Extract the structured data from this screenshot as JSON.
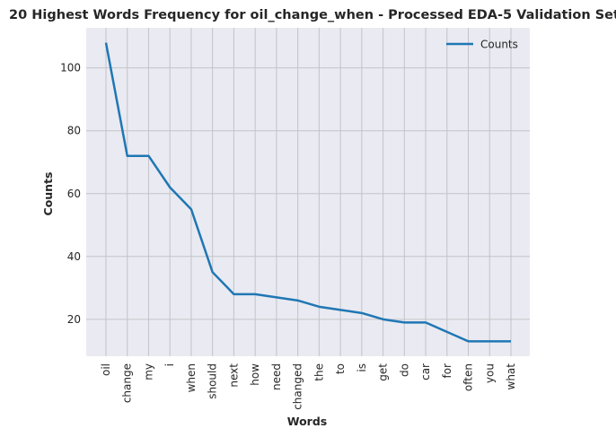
{
  "chart_data": {
    "type": "line",
    "title": "20 Highest Words Frequency for oil_change_when - Processed EDA-5 Validation Set",
    "xlabel": "Words",
    "ylabel": "Counts",
    "categories": [
      "oil",
      "change",
      "my",
      "i",
      "when",
      "should",
      "next",
      "how",
      "need",
      "changed",
      "the",
      "to",
      "is",
      "get",
      "do",
      "car",
      "for",
      "often",
      "you",
      "what"
    ],
    "series": [
      {
        "name": "Counts",
        "values": [
          108,
          72,
          72,
          62,
          55,
          35,
          28,
          28,
          27,
          26,
          24,
          23,
          22,
          20,
          19,
          19,
          16,
          13,
          13,
          13
        ]
      }
    ],
    "ylim": [
      8.25,
      112.75
    ],
    "yticks": [
      20,
      40,
      60,
      80,
      100
    ],
    "grid": true,
    "legend": "top-right",
    "colors": {
      "line": "#1f77b4",
      "background": "#eaeaf2",
      "grid": "#c3c3c9"
    }
  }
}
